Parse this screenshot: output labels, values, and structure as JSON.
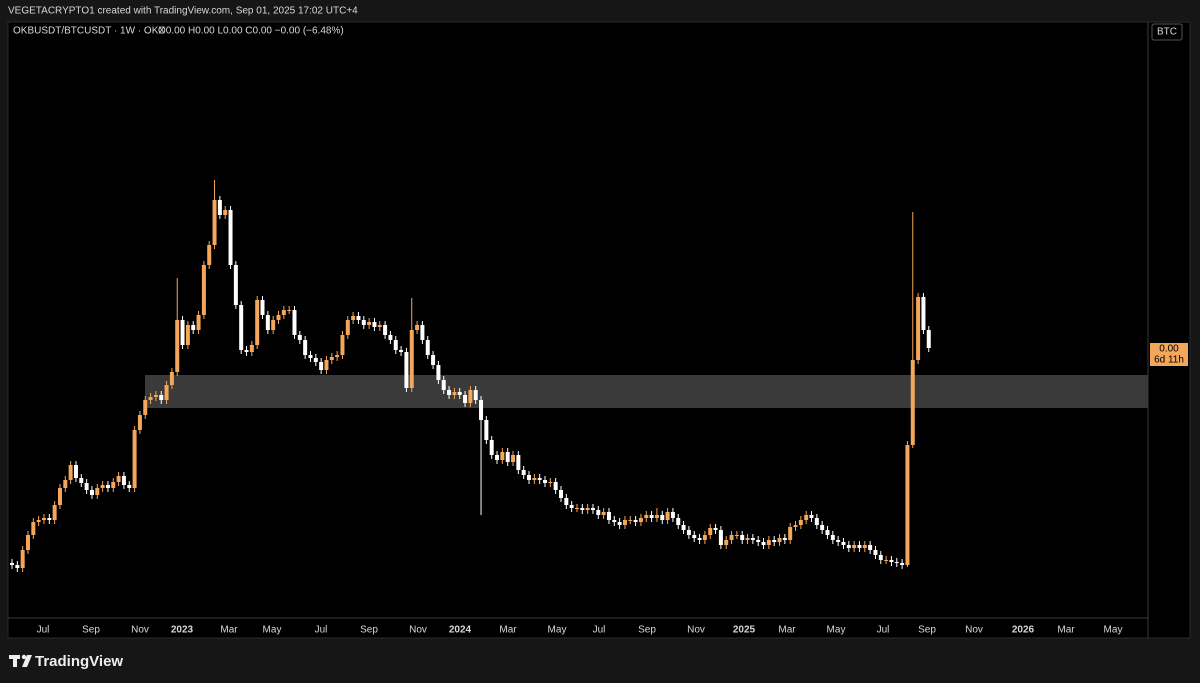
{
  "chart_data": {
    "type": "candlestick",
    "header": "VEGETACRYPTO1 created with TradingView.com, Sep 01, 2025 17:02 UTC+4",
    "title": "OKBUSDT/BTCUSDT · 1W · OKX",
    "ohlc_label": "O0.00 H0.00 L0.00 C0.00 −0.00 (−6.48%)",
    "y_axis_label": "BTC",
    "last_price_label": "0.00",
    "countdown": "6d 11h",
    "brand": "TradingView",
    "up_color": "#f4a65a",
    "down_color": "#ffffff",
    "ylim": [
      0,
      596
    ],
    "x_labels": [
      "Jul",
      "Sep",
      "Nov",
      "2023",
      "Mar",
      "May",
      "Jul",
      "Sep",
      "Nov",
      "2024",
      "Mar",
      "May",
      "Jul",
      "Sep",
      "Nov",
      "2025",
      "Mar",
      "May",
      "Jul",
      "Sep",
      "Nov",
      "2026",
      "Mar",
      "May"
    ],
    "open": [
      55,
      53,
      50,
      68,
      83,
      96,
      98,
      100,
      98,
      113,
      130,
      138,
      153,
      140,
      135,
      128,
      123,
      130,
      133,
      130,
      136,
      142,
      133,
      130,
      188,
      203,
      218,
      221,
      223,
      218,
      233,
      246,
      298,
      273,
      293,
      288,
      303,
      353,
      373,
      418,
      403,
      408,
      353,
      313,
      268,
      266,
      273,
      318,
      303,
      288,
      298,
      303,
      308,
      308,
      283,
      278,
      263,
      260,
      256,
      248,
      258,
      261,
      263,
      283,
      298,
      302,
      298,
      293,
      296,
      291,
      293,
      283,
      278,
      268,
      266,
      230,
      288,
      293,
      278,
      263,
      253,
      238,
      228,
      223,
      226,
      223,
      215,
      228,
      218,
      198,
      178,
      163,
      158,
      166,
      156,
      163,
      148,
      143,
      138,
      140,
      138,
      135,
      136,
      128,
      120,
      113,
      110,
      110,
      108,
      110,
      108,
      103,
      106,
      98,
      96,
      93,
      98,
      98,
      96,
      100,
      103,
      100,
      103,
      98,
      106,
      100,
      93,
      88,
      83,
      80,
      78,
      83,
      90,
      88,
      73,
      78,
      83,
      83,
      78,
      80,
      78,
      76,
      73,
      78,
      76,
      80,
      78,
      91,
      93,
      98,
      103,
      100,
      93,
      88,
      83,
      78,
      76,
      73,
      70,
      73,
      70,
      73,
      68,
      63,
      58,
      58,
      56,
      55,
      53,
      173,
      258,
      321,
      288
    ],
    "high": [
      59,
      57,
      72,
      87,
      100,
      102,
      104,
      104,
      117,
      134,
      142,
      157,
      157,
      144,
      139,
      132,
      134,
      137,
      137,
      140,
      146,
      146,
      137,
      192,
      207,
      222,
      225,
      227,
      227,
      237,
      250,
      340,
      302,
      297,
      297,
      307,
      357,
      377,
      438,
      422,
      412,
      412,
      357,
      317,
      272,
      277,
      322,
      322,
      307,
      302,
      307,
      312,
      312,
      312,
      287,
      282,
      267,
      264,
      260,
      262,
      265,
      267,
      287,
      302,
      306,
      306,
      302,
      300,
      300,
      297,
      297,
      287,
      282,
      272,
      270,
      320,
      297,
      297,
      282,
      267,
      257,
      242,
      232,
      230,
      230,
      227,
      232,
      232,
      222,
      202,
      182,
      167,
      170,
      170,
      167,
      167,
      152,
      147,
      144,
      144,
      142,
      140,
      140,
      132,
      124,
      117,
      114,
      114,
      114,
      114,
      112,
      110,
      110,
      102,
      100,
      102,
      102,
      102,
      104,
      107,
      107,
      110,
      107,
      110,
      110,
      104,
      97,
      92,
      87,
      84,
      87,
      94,
      94,
      92,
      82,
      87,
      87,
      87,
      84,
      84,
      82,
      80,
      82,
      82,
      84,
      84,
      95,
      97,
      102,
      107,
      107,
      104,
      97,
      92,
      87,
      82,
      80,
      77,
      77,
      77,
      77,
      77,
      72,
      67,
      62,
      62,
      60,
      59,
      177,
      406,
      325,
      325,
      292
    ],
    "low": [
      49,
      46,
      46,
      64,
      79,
      92,
      94,
      94,
      94,
      109,
      126,
      134,
      136,
      131,
      124,
      119,
      119,
      126,
      126,
      126,
      132,
      129,
      126,
      126,
      184,
      199,
      214,
      217,
      214,
      214,
      229,
      242,
      269,
      269,
      284,
      284,
      299,
      349,
      369,
      399,
      399,
      349,
      309,
      264,
      262,
      262,
      269,
      299,
      284,
      284,
      294,
      299,
      304,
      279,
      274,
      259,
      256,
      252,
      244,
      244,
      254,
      257,
      259,
      279,
      294,
      294,
      289,
      289,
      287,
      287,
      279,
      274,
      264,
      262,
      226,
      226,
      284,
      274,
      259,
      249,
      234,
      224,
      219,
      219,
      219,
      211,
      211,
      214,
      103,
      174,
      159,
      154,
      154,
      152,
      152,
      144,
      139,
      134,
      134,
      134,
      131,
      131,
      124,
      116,
      109,
      106,
      106,
      104,
      104,
      104,
      99,
      99,
      94,
      92,
      89,
      89,
      94,
      92,
      92,
      96,
      96,
      96,
      94,
      94,
      96,
      89,
      84,
      79,
      76,
      74,
      74,
      79,
      84,
      69,
      69,
      74,
      79,
      74,
      74,
      74,
      72,
      69,
      69,
      72,
      72,
      74,
      74,
      87,
      89,
      94,
      96,
      89,
      84,
      79,
      74,
      72,
      69,
      66,
      66,
      66,
      66,
      64,
      59,
      54,
      54,
      52,
      51,
      49,
      51,
      170,
      254,
      284,
      266
    ],
    "close": [
      53,
      50,
      68,
      83,
      96,
      98,
      100,
      98,
      113,
      130,
      138,
      153,
      140,
      135,
      128,
      123,
      130,
      133,
      130,
      136,
      142,
      133,
      130,
      188,
      203,
      218,
      221,
      223,
      218,
      233,
      246,
      298,
      273,
      293,
      288,
      303,
      353,
      373,
      418,
      403,
      408,
      353,
      313,
      268,
      266,
      273,
      318,
      303,
      288,
      298,
      303,
      308,
      308,
      283,
      278,
      263,
      260,
      256,
      248,
      258,
      261,
      263,
      283,
      298,
      302,
      298,
      293,
      296,
      291,
      293,
      283,
      278,
      268,
      266,
      230,
      288,
      293,
      278,
      263,
      253,
      238,
      228,
      223,
      226,
      223,
      215,
      228,
      218,
      198,
      178,
      163,
      158,
      166,
      156,
      163,
      148,
      143,
      138,
      140,
      138,
      135,
      136,
      128,
      120,
      113,
      110,
      110,
      108,
      110,
      108,
      103,
      106,
      98,
      96,
      93,
      98,
      98,
      96,
      100,
      103,
      100,
      103,
      98,
      106,
      100,
      93,
      88,
      83,
      80,
      78,
      83,
      90,
      88,
      73,
      78,
      83,
      83,
      78,
      80,
      78,
      76,
      73,
      78,
      76,
      80,
      78,
      91,
      93,
      98,
      103,
      100,
      93,
      88,
      83,
      78,
      76,
      73,
      70,
      73,
      70,
      73,
      68,
      63,
      58,
      58,
      56,
      55,
      53,
      173,
      258,
      321,
      288,
      270
    ]
  }
}
